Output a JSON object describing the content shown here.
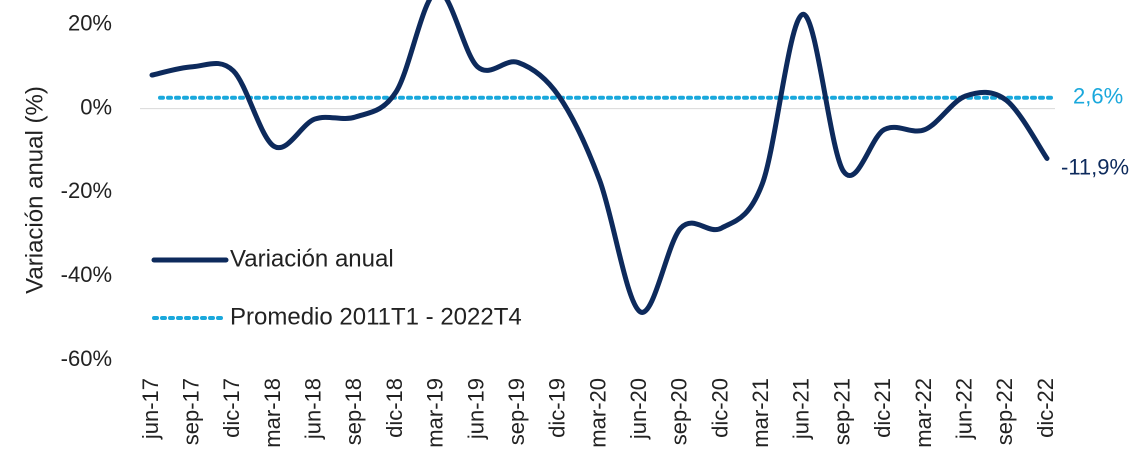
{
  "chart_data": {
    "type": "line",
    "y_label": "Variación anual (%)",
    "categories": [
      "jun-17",
      "sep-17",
      "dic-17",
      "mar-18",
      "jun-18",
      "sep-18",
      "dic-18",
      "mar-19",
      "jun-19",
      "sep-19",
      "dic-19",
      "mar-20",
      "jun-20",
      "sep-20",
      "dic-20",
      "mar-21",
      "jun-21",
      "sep-21",
      "dic-21",
      "mar-22",
      "jun-22",
      "sep-22",
      "dic-22"
    ],
    "series": [
      {
        "name": "Variación anual",
        "color": "#0d2a5c",
        "values": [
          8,
          10,
          9,
          -9,
          -2.5,
          -2,
          4,
          28,
          10,
          11,
          3,
          -17,
          -48.5,
          -28.5,
          -28.5,
          -18,
          22.5,
          -15,
          -5,
          -5,
          3,
          2,
          -11.9
        ],
        "last_label": "-11,9%"
      }
    ],
    "reference_lines": [
      {
        "name": "Promedio 2011T1 - 2022T4",
        "value": 2.6,
        "label": "2,6%",
        "color": "#1aa8dc",
        "style": "dotted"
      }
    ],
    "ylim": [
      -60,
      40
    ],
    "yticks": [
      {
        "value": -60,
        "label": "-60%"
      },
      {
        "value": -40,
        "label": "-40%"
      },
      {
        "value": -20,
        "label": "-20%"
      },
      {
        "value": 0,
        "label": "0%"
      },
      {
        "value": 20,
        "label": "20%"
      }
    ],
    "legend": "lower left"
  }
}
